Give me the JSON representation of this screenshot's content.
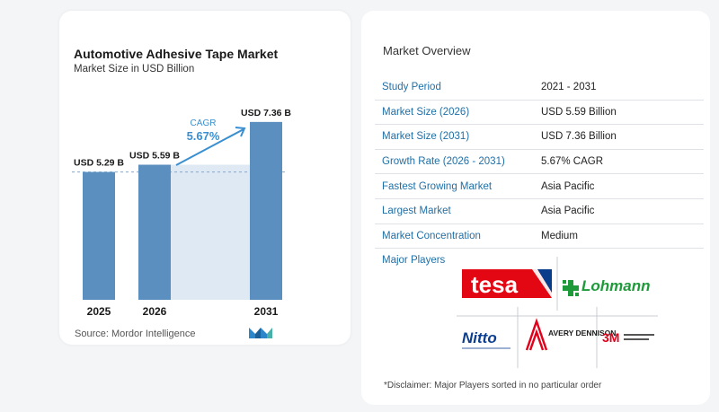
{
  "chart_data": {
    "type": "bar",
    "title": "Automotive Adhesive Tape Market",
    "subtitle": "Market Size in USD Billion",
    "categories": [
      "2025",
      "2026",
      "2031"
    ],
    "values": [
      5.29,
      5.59,
      7.36
    ],
    "data_labels": [
      "USD 5.29 B",
      "USD 5.59 B",
      "USD 7.36 B"
    ],
    "ylim": [
      0,
      7.8
    ],
    "cagr_label": "CAGR",
    "cagr_value": "5.67%",
    "bar_color": "#5b8fc0",
    "shade_color": "#dfe9f3"
  },
  "source": "Source:  Mordor Intelligence",
  "overview": {
    "title": "Market Overview",
    "rows": [
      {
        "label": "Study Period",
        "value": "2021 - 2031"
      },
      {
        "label": "Market Size (2026)",
        "value": "USD 5.59 Billion"
      },
      {
        "label": "Market Size (2031)",
        "value": "USD 7.36 Billion"
      },
      {
        "label": "Growth Rate (2026 - 2031)",
        "value": "5.67% CAGR"
      },
      {
        "label": "Fastest Growing Market",
        "value": "Asia Pacific"
      },
      {
        "label": "Largest Market",
        "value": "Asia Pacific"
      },
      {
        "label": "Market Concentration",
        "value": "Medium"
      }
    ],
    "players_label": "Major Players",
    "players": [
      "tesa",
      "Lohmann",
      "Nitto",
      "AVERY DENNISON",
      "3M"
    ],
    "disclaimer": "*Disclaimer: Major Players sorted in no particular order"
  },
  "colors": {
    "accent": "#1f6fa6",
    "tesa_red": "#e30613",
    "lohmann_green": "#1f9a3a",
    "nitto_blue": "#0b3e8f",
    "avery_red": "#e2001a",
    "mmm_red": "#e2001a"
  }
}
